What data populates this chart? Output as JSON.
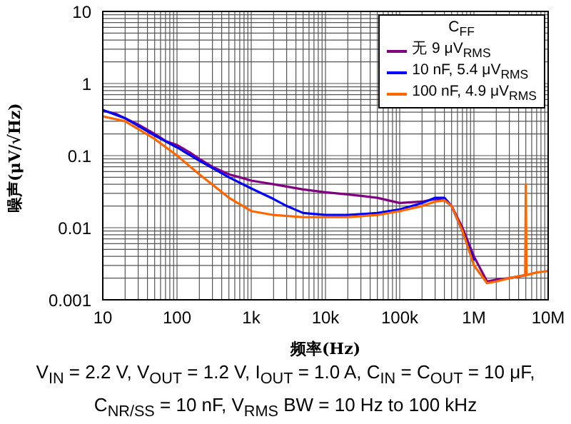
{
  "chart_data": {
    "type": "line",
    "xlabel": "频率(Hz)",
    "ylabel": "噪声(μV/√Hz)",
    "legend_title": "C$_{FF}$",
    "log": "xy",
    "grid": true,
    "legend": "top right",
    "marker": "none",
    "line_style": "solid",
    "xlim": [
      10,
      10000000
    ],
    "xticks": [
      10,
      100,
      {
        "value": 1000,
        "label": "1k"
      },
      {
        "value": 10000,
        "label": "10k"
      },
      {
        "value": 100000,
        "label": "100k"
      },
      {
        "value": 1000000,
        "label": "1M"
      },
      {
        "value": 10000000,
        "label": "10M"
      }
    ],
    "ylim": [
      0.001,
      10
    ],
    "yticks": [
      0.001,
      0.01,
      0.1,
      1,
      10
    ],
    "series": [
      {
        "name": "无 9 μV$_{RMS}$",
        "color": "#800080",
        "x": [
          10,
          15,
          20,
          30,
          50,
          70,
          100,
          150,
          200,
          300,
          500,
          700,
          1000,
          2000,
          5000,
          10000,
          20000,
          50000,
          100000,
          200000,
          300000,
          400000,
          500000,
          700000,
          1000000,
          1500000,
          2000000,
          3000000,
          5000000
        ],
        "values": [
          0.42,
          0.38,
          0.33,
          0.27,
          0.2,
          0.16,
          0.14,
          0.11,
          0.09,
          0.07,
          0.055,
          0.05,
          0.045,
          0.04,
          0.034,
          0.031,
          0.029,
          0.026,
          0.022,
          0.023,
          0.025,
          0.024,
          0.02,
          0.01,
          0.004,
          0.0018,
          0.0019,
          0.002,
          0.0022
        ]
      },
      {
        "name": "10 nF, 5.4 μV$_{RMS}$",
        "color": "#0000ff",
        "x": [
          10,
          20,
          50,
          100,
          200,
          500,
          1000,
          2000,
          3000,
          5000,
          10000,
          20000,
          50000,
          100000,
          200000,
          300000,
          400000,
          500000,
          700000,
          1000000
        ],
        "values": [
          0.43,
          0.33,
          0.19,
          0.13,
          0.085,
          0.05,
          0.035,
          0.025,
          0.02,
          0.016,
          0.015,
          0.015,
          0.016,
          0.018,
          0.022,
          0.026,
          0.026,
          0.02,
          0.009,
          0.0035
        ]
      },
      {
        "name": "100 nF, 4.9 μV$_{RMS}$",
        "color": "#ff6600",
        "x": [
          10,
          20,
          50,
          100,
          200,
          500,
          1000,
          2000,
          5000,
          10000,
          20000,
          50000,
          100000,
          200000,
          300000,
          400000,
          500000,
          700000,
          1000000,
          1500000,
          2000000,
          3000000,
          4900000,
          5000000,
          5100000,
          7000000,
          10000000
        ],
        "values": [
          0.35,
          0.3,
          0.17,
          0.1,
          0.055,
          0.026,
          0.017,
          0.015,
          0.014,
          0.014,
          0.014,
          0.015,
          0.017,
          0.02,
          0.023,
          0.024,
          0.02,
          0.009,
          0.003,
          0.0017,
          0.0018,
          0.002,
          0.0022,
          0.04,
          0.0022,
          0.0024,
          0.0025
        ]
      }
    ],
    "annotations": [
      "V$_{IN}$ = 2.2 V, V$_{OUT}$ = 1.2 V, I$_{OUT}$ = 1.0 A, C$_{IN}$ = C$_{OUT}$ = 10 μF,",
      "C$_{NR/SS}$ = 10 nF, V$_{RMS}$ BW = 10 Hz to 100 kHz"
    ]
  }
}
